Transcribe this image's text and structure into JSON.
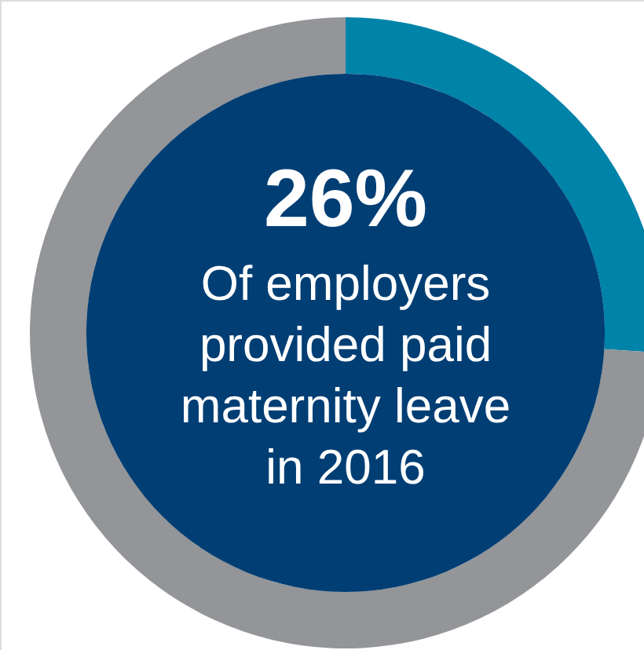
{
  "chart_data": {
    "type": "donut",
    "categories": [
      null,
      null
    ],
    "values": [
      26,
      74
    ],
    "colors": [
      "#0083a9",
      "#939598"
    ],
    "value_labels": [
      "26%",
      null
    ],
    "annotations": [
      "Of employers provided paid maternity leave in 2016"
    ]
  }
}
